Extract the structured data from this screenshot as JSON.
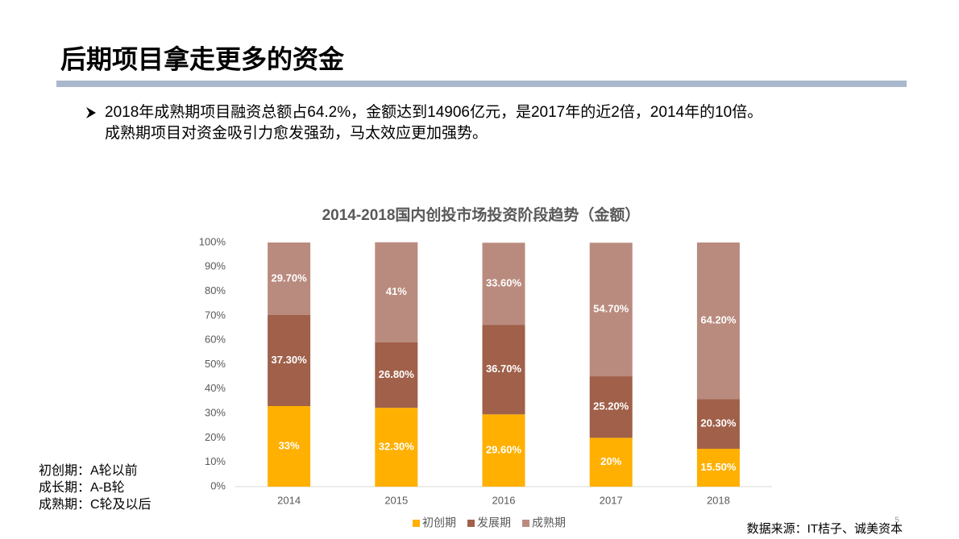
{
  "title": "后期项目拿走更多的资金",
  "bullet": {
    "lines": [
      "2018年成熟期项目融资总额占64.2%，金额达到14906亿元，是2017年的近2倍，2014年的10倍。",
      "成熟期项目对资金吸引力愈发强劲，马太效应更加强势。"
    ]
  },
  "notes": [
    "初创期：A轮以前",
    "成长期：A-B轮",
    "成熟期：C轮及以后"
  ],
  "source": "数据来源：IT桔子、诚美资本",
  "page_number": "5",
  "chart_data": {
    "type": "stacked_bar",
    "title": "2014-2018国内创投市场投资阶段趋势（金额）",
    "categories": [
      "2014",
      "2015",
      "2016",
      "2017",
      "2018"
    ],
    "series": [
      {
        "name": "初创期",
        "color": "#ffb000",
        "values": [
          33,
          32.3,
          29.6,
          20,
          15.5
        ],
        "value_labels": [
          "33%",
          "32.30%",
          "29.60%",
          "20%",
          "15.50%"
        ]
      },
      {
        "name": "发展期",
        "color": "#a0604a",
        "values": [
          37.3,
          26.8,
          36.7,
          25.2,
          20.3
        ],
        "value_labels": [
          "37.30%",
          "26.80%",
          "36.70%",
          "25.20%",
          "20.30%"
        ]
      },
      {
        "name": "成熟期",
        "color": "#b98b7e",
        "values": [
          29.7,
          41,
          33.6,
          54.7,
          64.2
        ],
        "value_labels": [
          "29.70%",
          "41%",
          "33.60%",
          "54.70%",
          "64.20%"
        ]
      }
    ],
    "ylim": [
      0,
      100
    ],
    "yticks": [
      {
        "value": 0,
        "label": "0%"
      },
      {
        "value": 10,
        "label": "10%"
      },
      {
        "value": 20,
        "label": "20%"
      },
      {
        "value": 30,
        "label": "30%"
      },
      {
        "value": 40,
        "label": "40%"
      },
      {
        "value": 50,
        "label": "50%"
      },
      {
        "value": 60,
        "label": "60%"
      },
      {
        "value": 70,
        "label": "70%"
      },
      {
        "value": 80,
        "label": "80%"
      },
      {
        "value": 90,
        "label": "90%"
      },
      {
        "value": 100,
        "label": "100%"
      }
    ],
    "grid": false,
    "legend": "bottom"
  }
}
